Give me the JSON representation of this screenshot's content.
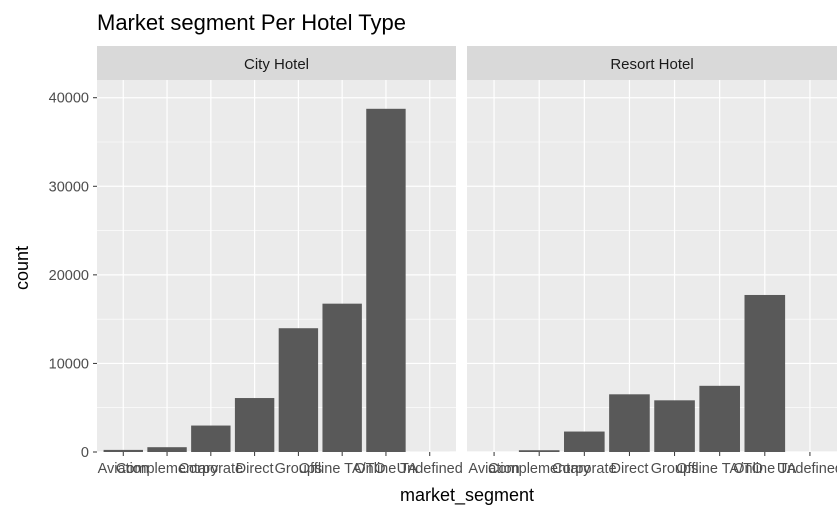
{
  "chart_data": {
    "type": "bar",
    "title": "Market segment Per Hotel Type",
    "xlabel": "market_segment",
    "ylabel": "count",
    "ylim": [
      0,
      42000
    ],
    "yticks": [
      0,
      10000,
      20000,
      30000,
      40000
    ],
    "grid": true,
    "legend": "none",
    "bar_color": "#595959",
    "panel_background": "#EBEBEB",
    "strip_background": "#D9D9D9",
    "categories": [
      "Aviation",
      "Complementary",
      "Corporate",
      "Direct",
      "Groups",
      "Offline TA/TO",
      "Online TA",
      "Undefined"
    ],
    "facets": [
      {
        "name": "City Hotel",
        "values": [
          237,
          542,
          2986,
          6093,
          13975,
          16747,
          38748,
          2
        ]
      },
      {
        "name": "Resort Hotel",
        "values": [
          0,
          201,
          2309,
          6513,
          5836,
          7472,
          17729,
          0
        ]
      }
    ]
  }
}
